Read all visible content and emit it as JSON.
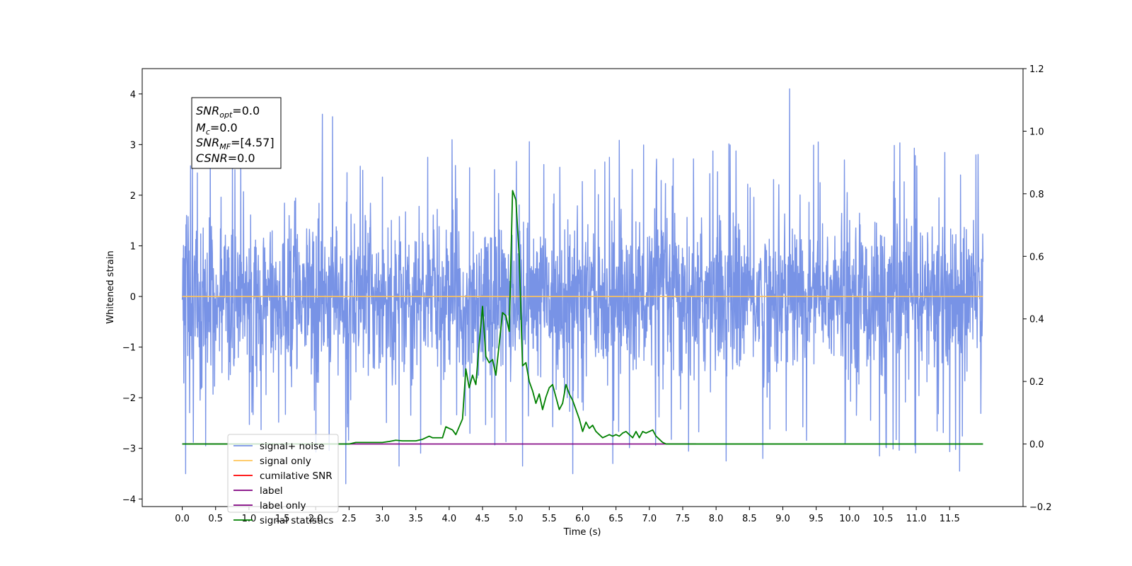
{
  "chart_data": {
    "type": "line",
    "xlabel": "Time (s)",
    "ylabel": "Whitened strain",
    "xlim": [
      -0.6,
      12.6
    ],
    "ylim": [
      -4.15,
      4.5
    ],
    "ylim_right": [
      -0.2,
      1.2
    ],
    "x_ticks": [
      "0.0",
      "0.5",
      "1.0",
      "1.5",
      "2.0",
      "2.5",
      "3.0",
      "3.5",
      "4.0",
      "4.5",
      "5.0",
      "5.5",
      "6.0",
      "6.5",
      "7.0",
      "7.5",
      "8.0",
      "8.5",
      "9.0",
      "9.5",
      "10.0",
      "10.5",
      "11.0",
      "11.5"
    ],
    "y_ticks_left": [
      "4",
      "3",
      "2",
      "1",
      "0",
      "−1",
      "−2",
      "−3",
      "−4"
    ],
    "y_ticks_right": [
      "1.2",
      "1.0",
      "0.8",
      "0.6",
      "0.4",
      "0.2",
      "0.0",
      "−0.2"
    ],
    "grid": false,
    "legend_placement": "lower-left",
    "annotation": {
      "snr_opt": {
        "sym": "SNR",
        "sub": "opt",
        "val": "=0.0"
      },
      "mc": {
        "sym": "M",
        "sub": "c",
        "val": "=0.0"
      },
      "snr_mf": {
        "sym": "SNR",
        "sub": "MF",
        "val": "=[4.57]"
      },
      "csnr": {
        "sym": "CSNR",
        "sub": "",
        "val": "=0.0"
      }
    },
    "series": [
      {
        "name": "signal+ noise",
        "color": "#7893e6",
        "axis": "left",
        "kind": "noise",
        "x_range": [
          0.0,
          12.0
        ],
        "band": [
          -1.5,
          1.5
        ],
        "notable_peaks": [
          [
            0.05,
            -3.5
          ],
          [
            0.15,
            2.6
          ],
          [
            0.35,
            -2.95
          ],
          [
            0.75,
            2.75
          ],
          [
            2.1,
            3.6
          ],
          [
            2.25,
            3.55
          ],
          [
            2.45,
            -3.7
          ],
          [
            3.25,
            -3.35
          ],
          [
            5.1,
            3.75
          ],
          [
            5.1,
            -3.35
          ],
          [
            5.85,
            -3.5
          ],
          [
            6.45,
            -3.3
          ],
          [
            8.15,
            -3.25
          ],
          [
            8.7,
            -3.2
          ],
          [
            9.1,
            4.1
          ],
          [
            10.45,
            -3.15
          ],
          [
            11.65,
            3.35
          ],
          [
            11.65,
            -3.45
          ]
        ]
      },
      {
        "name": "signal only",
        "color": "#ffc55a",
        "axis": "left",
        "kind": "line",
        "x": [
          0.0,
          12.0
        ],
        "y": [
          0.0,
          0.0
        ]
      },
      {
        "name": "cumilative SNR",
        "color": "#ff0000",
        "axis": "left",
        "kind": "hidden"
      },
      {
        "name": "label",
        "color": "#800080",
        "axis": "right",
        "kind": "line",
        "x": [
          0.0,
          7.7
        ],
        "y": [
          0.0,
          0.0
        ]
      },
      {
        "name": "label only",
        "color": "#800080",
        "axis": "right",
        "kind": "hidden"
      },
      {
        "name": "signal statistics",
        "color": "#008000",
        "axis": "right",
        "kind": "line",
        "x": [
          0.0,
          2.5,
          2.6,
          3.0,
          3.1,
          3.2,
          3.3,
          3.4,
          3.5,
          3.6,
          3.7,
          3.75,
          3.8,
          3.9,
          3.95,
          4.05,
          4.1,
          4.2,
          4.25,
          4.3,
          4.35,
          4.4,
          4.45,
          4.5,
          4.55,
          4.6,
          4.65,
          4.7,
          4.75,
          4.8,
          4.85,
          4.9,
          4.95,
          5.0,
          5.05,
          5.1,
          5.15,
          5.2,
          5.25,
          5.3,
          5.35,
          5.4,
          5.45,
          5.5,
          5.55,
          5.6,
          5.65,
          5.7,
          5.75,
          5.8,
          5.85,
          5.9,
          5.95,
          6.0,
          6.05,
          6.1,
          6.15,
          6.2,
          6.25,
          6.3,
          6.35,
          6.4,
          6.45,
          6.5,
          6.55,
          6.6,
          6.65,
          6.7,
          6.75,
          6.8,
          6.85,
          6.9,
          6.95,
          7.0,
          7.05,
          7.1,
          7.15,
          7.2,
          7.25,
          7.3,
          7.35,
          7.4,
          7.5,
          7.6,
          7.7,
          7.9,
          12.0
        ],
        "y": [
          0.0,
          0.0,
          0.005,
          0.005,
          0.008,
          0.012,
          0.01,
          0.01,
          0.01,
          0.015,
          0.025,
          0.02,
          0.02,
          0.02,
          0.055,
          0.045,
          0.03,
          0.08,
          0.24,
          0.18,
          0.22,
          0.19,
          0.32,
          0.44,
          0.28,
          0.26,
          0.27,
          0.22,
          0.32,
          0.42,
          0.41,
          0.36,
          0.81,
          0.78,
          0.6,
          0.25,
          0.26,
          0.2,
          0.17,
          0.13,
          0.16,
          0.11,
          0.15,
          0.18,
          0.19,
          0.15,
          0.11,
          0.13,
          0.19,
          0.16,
          0.14,
          0.11,
          0.08,
          0.04,
          0.07,
          0.05,
          0.06,
          0.04,
          0.03,
          0.02,
          0.025,
          0.03,
          0.025,
          0.03,
          0.025,
          0.035,
          0.04,
          0.03,
          0.02,
          0.04,
          0.02,
          0.04,
          0.035,
          0.04,
          0.045,
          0.025,
          0.015,
          0.005,
          0.0,
          0.0,
          0.0,
          0.0,
          0.0,
          0.0,
          0.0,
          0.0,
          0.0
        ]
      }
    ]
  }
}
